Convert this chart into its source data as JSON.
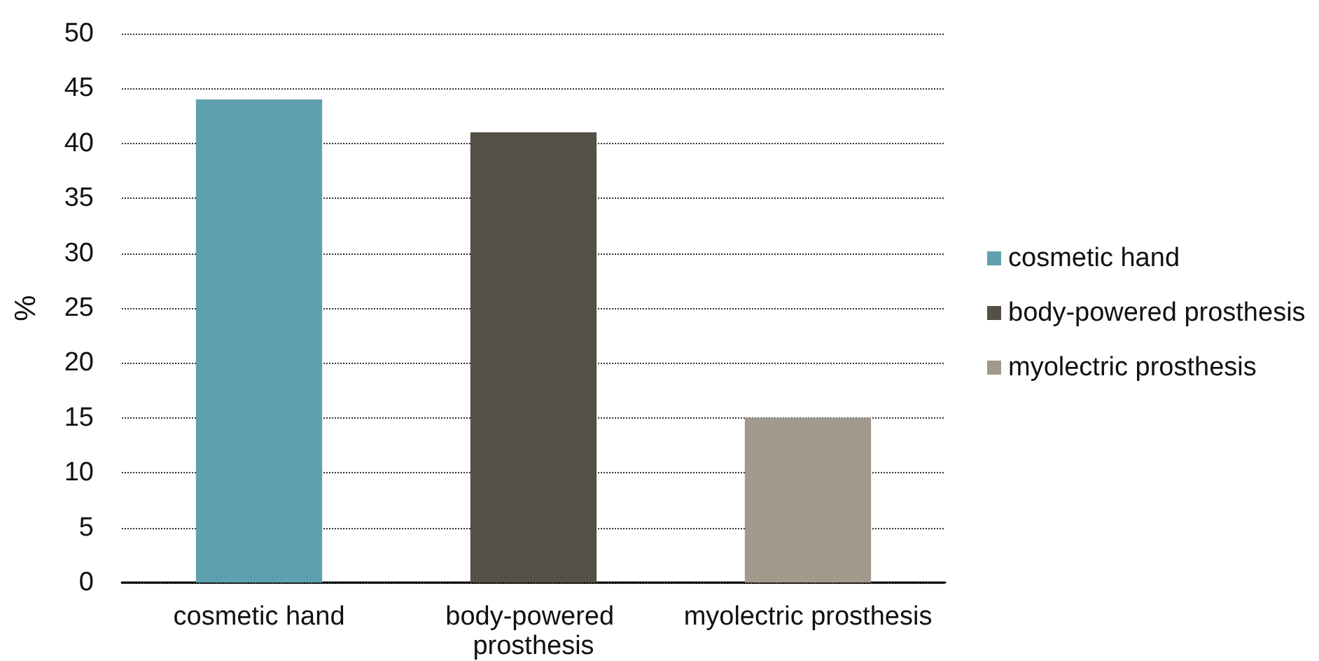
{
  "chart_data": {
    "type": "bar",
    "ylabel": "%",
    "categories": [
      "cosmetic hand",
      "body-powered prosthesis",
      "myolectric prosthesis"
    ],
    "series": [
      {
        "name": "cosmetic hand",
        "color": "#5fa0ae",
        "values": [
          44,
          null,
          null
        ]
      },
      {
        "name": "body-powered prosthesis",
        "color": "#555045",
        "values": [
          null,
          41,
          null
        ]
      },
      {
        "name": "myolectric prosthesis",
        "color": "#a1998b",
        "values": [
          null,
          null,
          15
        ]
      }
    ],
    "stacked": true,
    "ylim": [
      0,
      50
    ],
    "yticks": [
      0,
      5,
      10,
      15,
      20,
      25,
      30,
      35,
      40,
      45,
      50
    ],
    "grid": "y",
    "legend": "right"
  }
}
